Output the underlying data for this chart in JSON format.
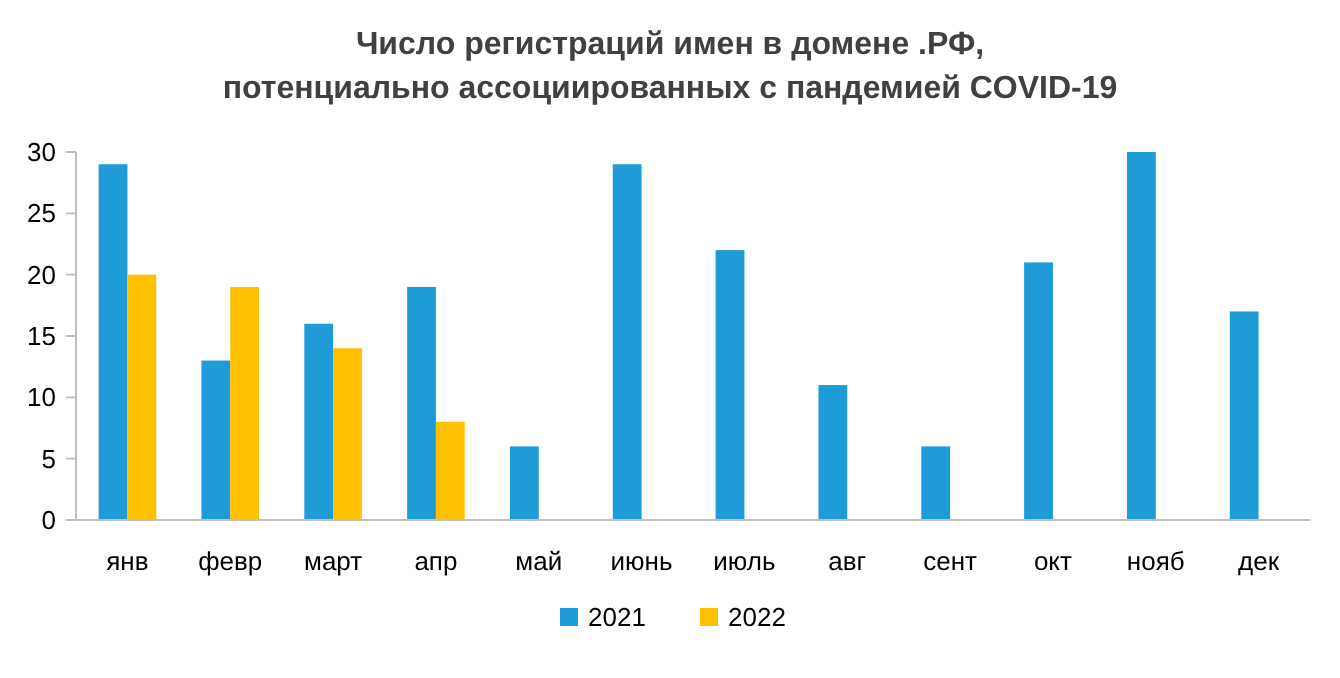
{
  "chart_data": {
    "type": "bar",
    "title": "Число регистраций имен в домене .РФ,\nпотенциально ассоциированных с пандемией COVID-19",
    "categories": [
      "янв",
      "февр",
      "март",
      "апр",
      "май",
      "июнь",
      "июль",
      "авг",
      "сент",
      "окт",
      "нояб",
      "дек"
    ],
    "series": [
      {
        "name": "2021",
        "color": "#1f9bd7",
        "values": [
          29,
          13,
          16,
          19,
          6,
          29,
          22,
          11,
          6,
          21,
          30,
          17
        ]
      },
      {
        "name": "2022",
        "color": "#ffc000",
        "values": [
          20,
          19,
          14,
          8,
          null,
          null,
          null,
          null,
          null,
          null,
          null,
          null
        ]
      }
    ],
    "ylim": [
      0,
      30
    ],
    "yticks": [
      0,
      5,
      10,
      15,
      20,
      25,
      30
    ],
    "grid": false,
    "legend": "bottom"
  }
}
